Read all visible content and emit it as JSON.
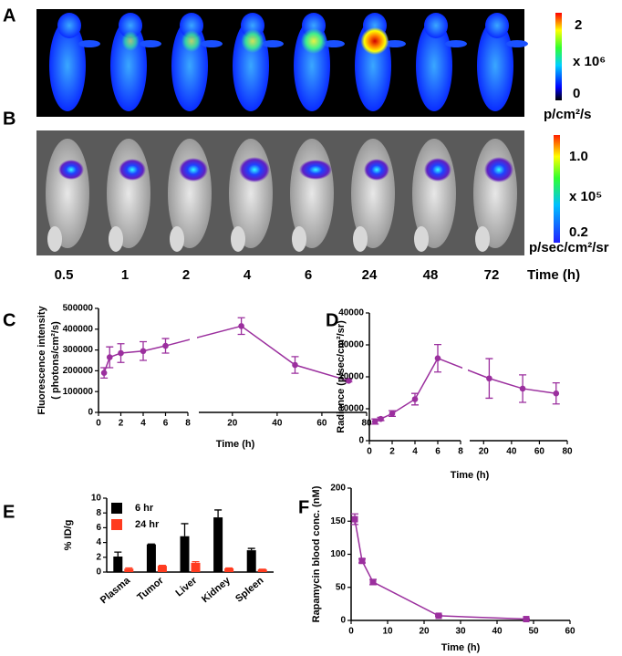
{
  "panel_a": {
    "label": "A",
    "colorbar": {
      "max": "2",
      "scale": "x 10⁶",
      "min": "0",
      "unit": "p/cm²/s"
    }
  },
  "panel_b": {
    "label": "B",
    "colorbar": {
      "max": "1.0",
      "scale": "x 10⁵",
      "min": "0.2",
      "unit": "p/sec/cm²/sr"
    },
    "time_points": [
      "0.5",
      "1",
      "2",
      "4",
      "6",
      "24",
      "48",
      "72"
    ],
    "time_label": "Time (h)"
  },
  "chart_data": [
    {
      "type": "line",
      "panel": "C",
      "ylabel": [
        "Fluorescence intensity",
        "( photons/cm²/s)"
      ],
      "xlabel": "Time (h)",
      "x": [
        0.5,
        1,
        2,
        4,
        6,
        24,
        48,
        72
      ],
      "values": [
        190000,
        265000,
        285000,
        295000,
        320000,
        415000,
        228000,
        152000
      ],
      "errors": [
        25000,
        50000,
        45000,
        45000,
        35000,
        40000,
        40000,
        5000
      ],
      "color": "#9b2f9e",
      "marker": "circle",
      "x_segments": [
        {
          "xlim": [
            0,
            8
          ],
          "xticks": [
            0,
            2,
            4,
            6,
            8
          ]
        },
        {
          "xlim": [
            5,
            80
          ],
          "xticks": [
            20,
            40,
            60,
            80
          ]
        }
      ],
      "ylim": [
        0,
        500000
      ],
      "yticks": [
        0,
        100000,
        200000,
        300000,
        400000,
        500000
      ]
    },
    {
      "type": "line",
      "panel": "D",
      "ylabel": [
        "Radiance (p/sec/cm²/sr)"
      ],
      "xlabel": "Time (h)",
      "x": [
        0.5,
        1,
        2,
        4,
        6,
        24,
        48,
        72
      ],
      "values": [
        6000,
        6800,
        8500,
        13000,
        25800,
        19500,
        16300,
        14800
      ],
      "errors": [
        800,
        500,
        900,
        1800,
        4300,
        6200,
        4300,
        3300
      ],
      "color": "#9b2f9e",
      "marker": "circle",
      "x_segments": [
        {
          "xlim": [
            0,
            8
          ],
          "xticks": [
            0,
            2,
            4,
            6,
            8
          ]
        },
        {
          "xlim": [
            10,
            80
          ],
          "xticks": [
            20,
            40,
            60,
            80
          ]
        }
      ],
      "ylim": [
        0,
        40000
      ],
      "yticks": [
        0,
        10000,
        20000,
        30000,
        40000
      ]
    },
    {
      "type": "bar",
      "panel": "E",
      "ylabel": [
        "% ID/g"
      ],
      "categories": [
        "Plasma",
        "Tumor",
        "Liver",
        "Kidney",
        "Spleen"
      ],
      "series": [
        {
          "name": "6 hr",
          "color": "#000000",
          "values": [
            2.1,
            3.75,
            4.85,
            7.4,
            2.95
          ],
          "errors": [
            0.6,
            0.05,
            1.7,
            1.0,
            0.25
          ]
        },
        {
          "name": "24 hr",
          "color": "#ff3b1f",
          "values": [
            0.45,
            0.85,
            1.25,
            0.5,
            0.35
          ],
          "errors": [
            0.1,
            0.05,
            0.15,
            0.05,
            0.03
          ]
        }
      ],
      "ylim": [
        0,
        10
      ],
      "yticks": [
        0,
        2,
        4,
        6,
        8,
        10
      ]
    },
    {
      "type": "line",
      "panel": "F",
      "ylabel": [
        "Rapamycin blood conc. (nM)"
      ],
      "xlabel": "Time (h)",
      "x": [
        1,
        3,
        6,
        24,
        48
      ],
      "values": [
        153,
        90,
        58,
        7,
        2
      ],
      "errors": [
        8,
        3,
        4,
        1,
        0.5
      ],
      "color": "#9b2f9e",
      "marker": "square",
      "xlim": [
        0,
        60
      ],
      "xticks": [
        0,
        10,
        20,
        30,
        40,
        50,
        60
      ],
      "ylim": [
        0,
        200
      ],
      "yticks": [
        0,
        50,
        100,
        150,
        200
      ]
    }
  ]
}
